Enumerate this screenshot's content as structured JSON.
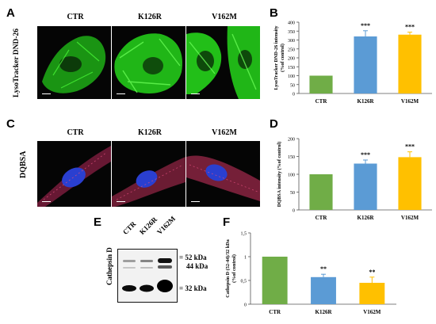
{
  "panels": {
    "A": {
      "letter": "A",
      "ylabel": "LysoTracker DND-26",
      "columns": [
        "CTR",
        "K126R",
        "V162M"
      ]
    },
    "B": {
      "letter": "B"
    },
    "C": {
      "letter": "C",
      "ylabel": "DQBSA",
      "columns": [
        "CTR",
        "K126R",
        "V162M"
      ]
    },
    "D": {
      "letter": "D"
    },
    "E": {
      "letter": "E",
      "ylabel": "Cathepsin D",
      "lanes": [
        "CTR",
        "K126R",
        "V162M"
      ],
      "markers": [
        {
          "label": "52 kDa",
          "prefix": "="
        },
        {
          "label": "44 kDa",
          "prefix": ""
        },
        {
          "label": "32 kDa",
          "prefix": "="
        }
      ]
    },
    "F": {
      "letter": "F"
    }
  },
  "colors": {
    "ctr": "#70ad47",
    "k126r": "#5b9bd5",
    "v162m": "#ffc000",
    "lyso_green": "#22e01a",
    "dq_red": "#c0305a",
    "nucleus": "#2a3fd0"
  },
  "chart_data": [
    {
      "panel": "B",
      "type": "bar",
      "categories": [
        "CTR",
        "K126R",
        "V162M"
      ],
      "values": [
        100,
        320,
        330
      ],
      "errors": [
        0,
        32,
        14
      ],
      "annotations": [
        "",
        "***",
        "***"
      ],
      "ylabel": "LysoTracker DND-26 intensity",
      "ylabel2": "(%of control)",
      "ylim": [
        0,
        400
      ],
      "yticks": [
        "0",
        "50",
        "100",
        "150",
        "200",
        "250",
        "300",
        "350",
        "400"
      ]
    },
    {
      "panel": "D",
      "type": "bar",
      "categories": [
        "CTR",
        "K126R",
        "V162M"
      ],
      "values": [
        100,
        130,
        148
      ],
      "errors": [
        0,
        10,
        15
      ],
      "annotations": [
        "",
        "***",
        "***"
      ],
      "ylabel": "DQBSA intensity (%of control)",
      "ylim": [
        0,
        200
      ],
      "yticks": [
        "0",
        "50",
        "100",
        "150",
        "200"
      ]
    },
    {
      "panel": "F",
      "type": "bar",
      "categories": [
        "CTR",
        "K126R",
        "V162M"
      ],
      "values": [
        1.0,
        0.57,
        0.45
      ],
      "errors": [
        0,
        0.06,
        0.12
      ],
      "annotations": [
        "",
        "**",
        "**"
      ],
      "ylabel": "Cathepsin D (52-44)/32 kDa",
      "ylabel2": "(%of control)",
      "ylim": [
        0,
        1.5
      ],
      "yticks": [
        "0",
        "0,5",
        "1",
        "1,5"
      ]
    }
  ]
}
